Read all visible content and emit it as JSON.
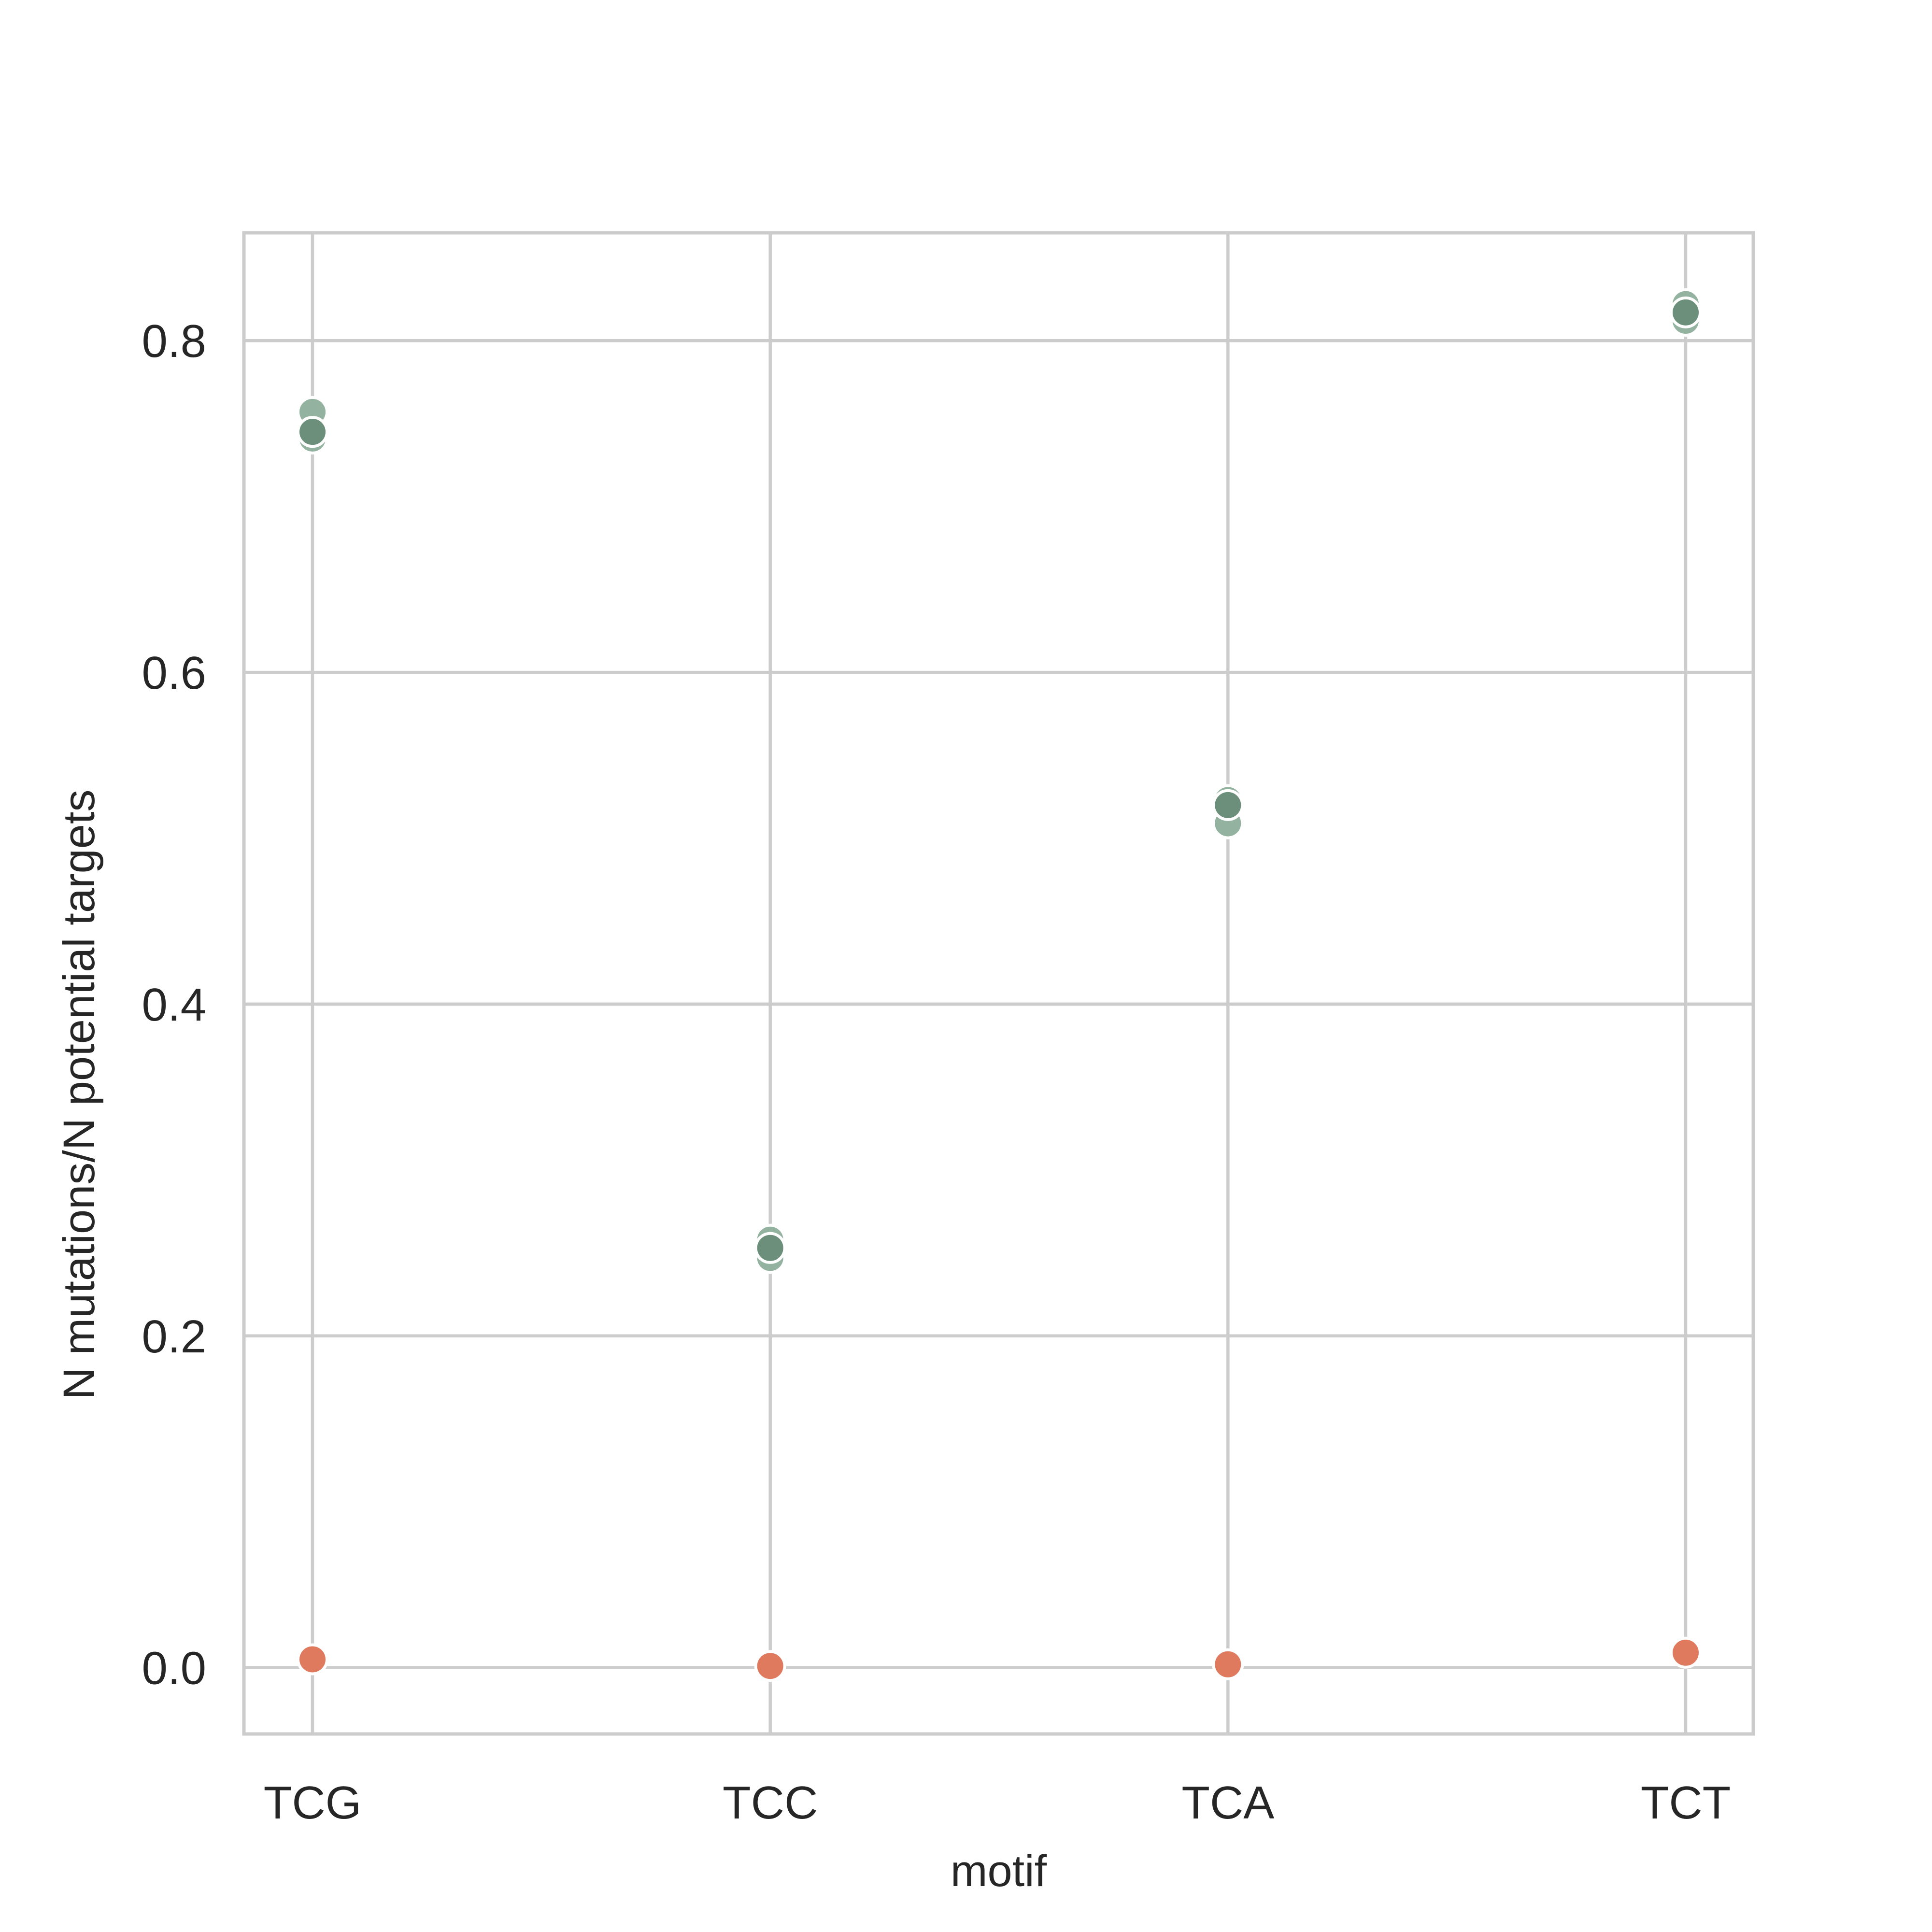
{
  "chart_data": {
    "type": "scatter",
    "title": "",
    "xlabel": "motif",
    "ylabel": "N mutations/N potential targets",
    "categories": [
      "TCG",
      "TCC",
      "TCA",
      "TCT"
    ],
    "ylim": [
      -0.04,
      0.865
    ],
    "yticks": [
      0.0,
      0.2,
      0.4,
      0.6,
      0.8
    ],
    "ytick_labels": [
      "0.0",
      "0.2",
      "0.4",
      "0.6",
      "0.8"
    ],
    "grid": true,
    "legend": "none",
    "series": [
      {
        "color": "#93b3a0",
        "points": [
          {
            "category": "TCG",
            "y": 0.757
          },
          {
            "category": "TCG",
            "y": 0.741
          },
          {
            "category": "TCC",
            "y": 0.258
          },
          {
            "category": "TCC",
            "y": 0.247
          },
          {
            "category": "TCA",
            "y": 0.523
          },
          {
            "category": "TCA",
            "y": 0.509
          },
          {
            "category": "TCT",
            "y": 0.822
          },
          {
            "category": "TCT",
            "y": 0.812
          }
        ]
      },
      {
        "color": "#6b8f7b",
        "points": [
          {
            "category": "TCG",
            "y": 0.745
          },
          {
            "category": "TCC",
            "y": 0.253
          },
          {
            "category": "TCA",
            "y": 0.52
          },
          {
            "category": "TCT",
            "y": 0.817
          }
        ]
      },
      {
        "color": "#e07a5f",
        "points": [
          {
            "category": "TCG",
            "y": 0.005
          },
          {
            "category": "TCC",
            "y": 0.001
          },
          {
            "category": "TCA",
            "y": 0.002
          },
          {
            "category": "TCT",
            "y": 0.009
          }
        ]
      }
    ]
  }
}
